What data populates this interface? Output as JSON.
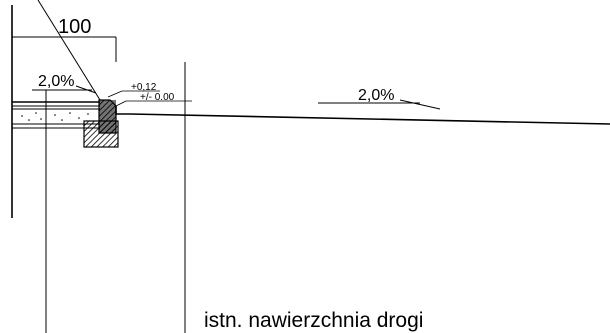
{
  "drawing": {
    "dimension_label": "100",
    "slope_left_label": "2,0%",
    "slope_right_label": "2,0%",
    "elevation_top_label": "+0,12",
    "elevation_zero_label": "+/- 0.00",
    "caption": "istn. nawierzchnia drogi",
    "line_color": "#000000",
    "hatch_color": "#000000"
  }
}
